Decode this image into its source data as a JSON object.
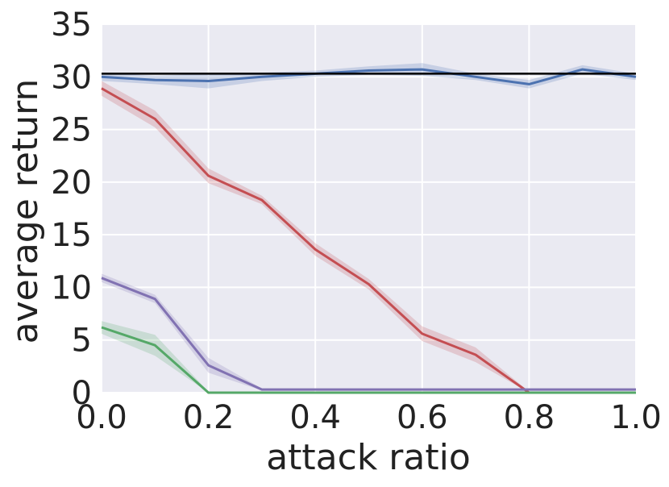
{
  "chart_data": {
    "type": "line",
    "title": "",
    "xlabel": "attack ratio",
    "ylabel": "average return",
    "xlim": [
      0.0,
      1.0
    ],
    "ylim": [
      0,
      35
    ],
    "x_ticks": [
      "0.0",
      "0.2",
      "0.4",
      "0.6",
      "0.8",
      "1.0"
    ],
    "y_ticks": [
      "0",
      "5",
      "10",
      "15",
      "20",
      "25",
      "30",
      "35"
    ],
    "grid": true,
    "background": "#EAEAF2",
    "x": [
      0.0,
      0.1,
      0.2,
      0.3,
      0.4,
      0.5,
      0.6,
      0.7,
      0.8,
      0.9,
      1.0
    ],
    "reference_line": {
      "y": 30.3,
      "color": "#000000"
    },
    "series": [
      {
        "color": "#4C72B0",
        "values": [
          30.0,
          29.7,
          29.6,
          30.0,
          30.3,
          30.6,
          30.7,
          30.0,
          29.3,
          30.7,
          30.0
        ],
        "band": [
          0.4,
          0.4,
          0.7,
          0.4,
          0.3,
          0.4,
          0.6,
          0.3,
          0.4,
          0.4,
          0.3
        ]
      },
      {
        "color": "#C44E52",
        "values": [
          28.9,
          26.0,
          20.6,
          18.3,
          13.6,
          10.3,
          5.6,
          3.6,
          0.0,
          0.0,
          0.0
        ],
        "band": [
          0.7,
          0.8,
          0.7,
          0.4,
          0.6,
          0.5,
          0.7,
          0.7,
          0.1,
          0.1,
          0.1
        ]
      },
      {
        "color": "#8172B2",
        "values": [
          10.9,
          8.9,
          2.6,
          0.3,
          0.3,
          0.3,
          0.3,
          0.3,
          0.3,
          0.3,
          0.3
        ],
        "band": [
          0.4,
          0.4,
          0.7,
          0.1,
          0.1,
          0.1,
          0.1,
          0.1,
          0.1,
          0.1,
          0.1
        ]
      },
      {
        "color": "#55A868",
        "values": [
          6.2,
          4.5,
          0.0,
          0.0,
          0.0,
          0.0,
          0.0,
          0.0,
          0.0,
          0.0,
          0.0
        ],
        "band": [
          0.6,
          1.0,
          0.1,
          0.0,
          0.0,
          0.0,
          0.0,
          0.0,
          0.0,
          0.0,
          0.0
        ]
      }
    ]
  }
}
